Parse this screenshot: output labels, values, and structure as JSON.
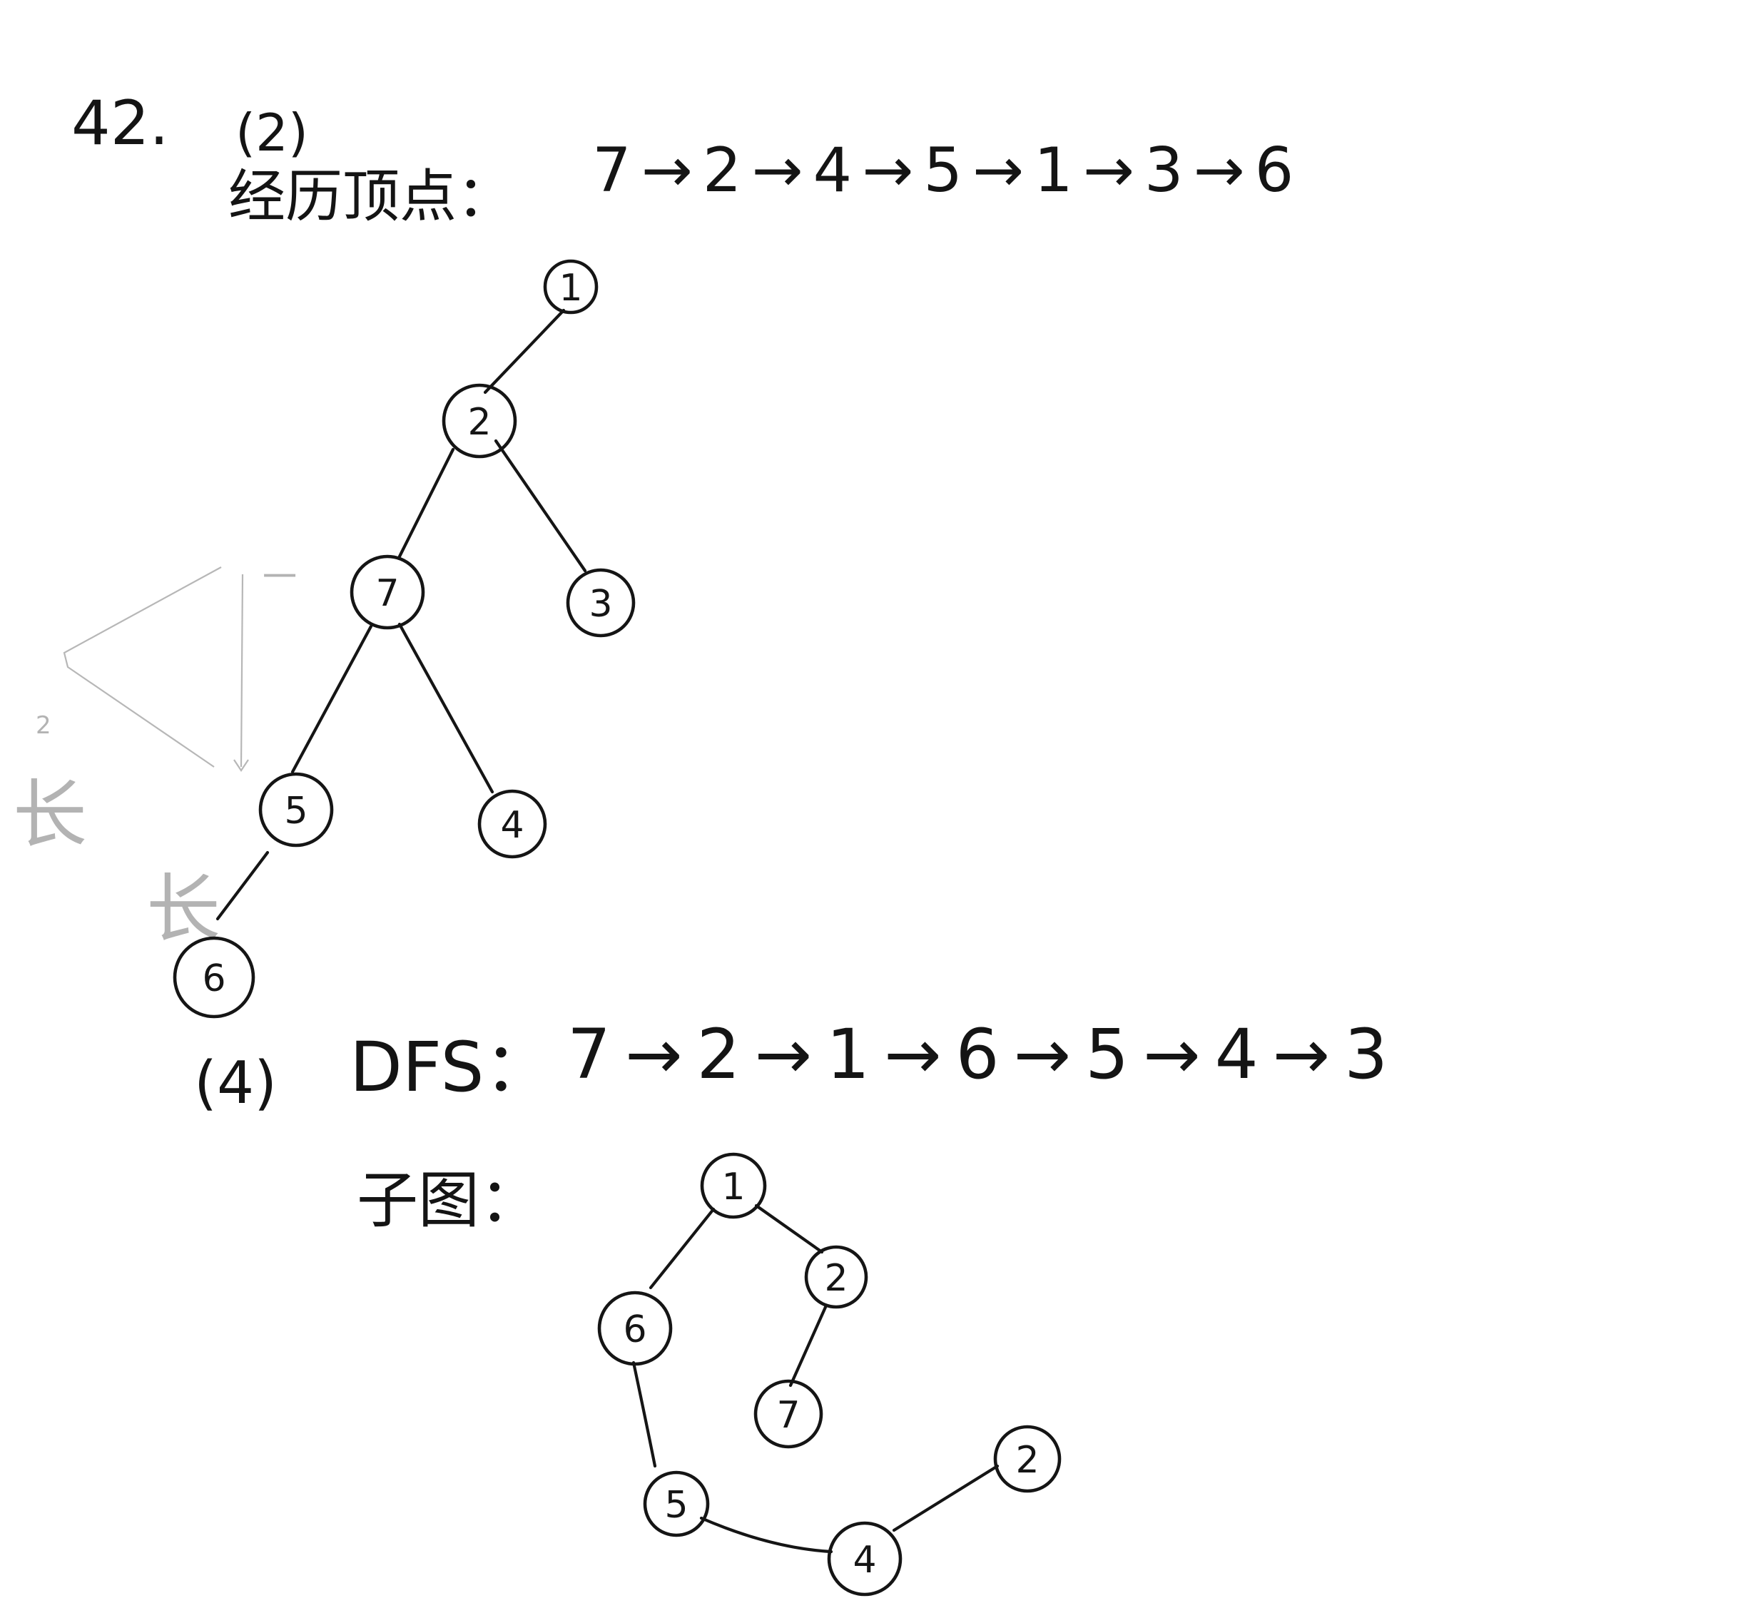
{
  "header": {
    "problem_number": "42.",
    "part_a": "(2)",
    "part_b": "(4)"
  },
  "bfs": {
    "label": "经历顶点：",
    "sequence": "7→2→4→5→1→3→6",
    "tree": {
      "nodes": [
        "1",
        "2",
        "7",
        "3",
        "5",
        "4",
        "6"
      ],
      "edges": [
        [
          "1",
          "2"
        ],
        [
          "2",
          "7"
        ],
        [
          "2",
          "3"
        ],
        [
          "7",
          "5"
        ],
        [
          "7",
          "4"
        ],
        [
          "5",
          "6"
        ]
      ]
    }
  },
  "dfs": {
    "label": "DFS：",
    "sequence": "7→2→1→6→5→4→3",
    "subgraph_label": "子图：",
    "tree": {
      "nodes": [
        "1",
        "2",
        "6",
        "7",
        "5",
        "4",
        "2"
      ],
      "edges": [
        [
          "1",
          "2"
        ],
        [
          "1",
          "6"
        ],
        [
          "2",
          "7"
        ],
        [
          "6",
          "5"
        ],
        [
          "5",
          "4"
        ],
        [
          "4",
          "2"
        ]
      ]
    }
  },
  "faint_marks": {
    "marks": [
      "一",
      "2",
      "长",
      "长"
    ]
  }
}
